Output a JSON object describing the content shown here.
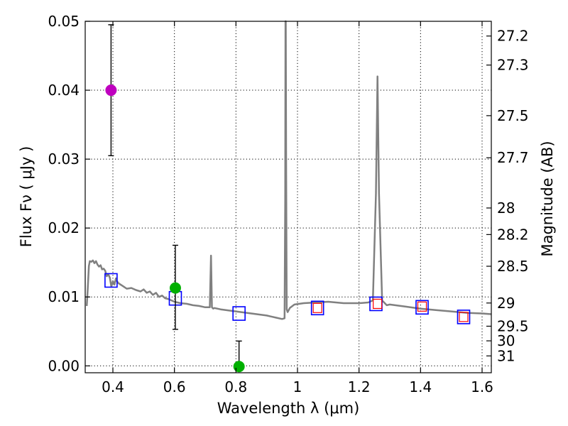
{
  "chart_data": {
    "type": "scatter",
    "title": "",
    "xlabel": "Wavelength  λ (μm)",
    "ylabel": "Flux  Fν  ( μJy )",
    "y2label": "Magnitude (AB)",
    "xlim": [
      0.31,
      1.63
    ],
    "ylim": [
      -0.001,
      0.05
    ],
    "grid": true,
    "x_ticks": [
      0.4,
      0.6,
      0.8,
      1.0,
      1.2,
      1.4,
      1.6
    ],
    "x_tick_labels": [
      "0.4",
      "0.6",
      "0.8",
      "1",
      "1.2",
      "1.4",
      "1.6"
    ],
    "y_ticks": [
      0.0,
      0.01,
      0.02,
      0.03,
      0.04,
      0.05
    ],
    "y_tick_labels": [
      "0.00",
      "0.01",
      "0.02",
      "0.03",
      "0.04",
      "0.05"
    ],
    "mag_ticks": [
      "27.2",
      "27.3",
      "27.5",
      "27.7",
      "28",
      "28.2",
      "28.5",
      "29",
      "29.5",
      "30",
      "31"
    ],
    "colors": {
      "model": "#808080",
      "blue_box": "#0000ff",
      "red_box": "#ff0000",
      "magenta": "#bf00bf",
      "green": "#00b000"
    },
    "series": [
      {
        "name": "model SED",
        "style": "line",
        "x": [
          0.315,
          0.318,
          0.322,
          0.325,
          0.33,
          0.335,
          0.34,
          0.345,
          0.35,
          0.355,
          0.36,
          0.365,
          0.37,
          0.375,
          0.38,
          0.385,
          0.39,
          0.395,
          0.4,
          0.405,
          0.41,
          0.413,
          0.418,
          0.425,
          0.435,
          0.445,
          0.46,
          0.475,
          0.49,
          0.5,
          0.51,
          0.52,
          0.53,
          0.54,
          0.55,
          0.56,
          0.57,
          0.58,
          0.6,
          0.62,
          0.64,
          0.66,
          0.68,
          0.7,
          0.715,
          0.719,
          0.722,
          0.726,
          0.73,
          0.75,
          0.8,
          0.85,
          0.9,
          0.93,
          0.95,
          0.958,
          0.96,
          0.961,
          0.962,
          0.963,
          0.965,
          0.968,
          0.975,
          0.99,
          1.02,
          1.06,
          1.1,
          1.15,
          1.2,
          1.23,
          1.245,
          1.255,
          1.26,
          1.265,
          1.275,
          1.29,
          1.3,
          1.35,
          1.4,
          1.45,
          1.5,
          1.55,
          1.6,
          1.63
        ],
        "y": [
          0.0087,
          0.011,
          0.0145,
          0.0152,
          0.0151,
          0.0153,
          0.0149,
          0.0152,
          0.0147,
          0.0144,
          0.0146,
          0.014,
          0.0141,
          0.0138,
          0.013,
          0.0133,
          0.0128,
          0.0115,
          0.0123,
          0.0118,
          0.0127,
          0.0123,
          0.012,
          0.0118,
          0.0115,
          0.0112,
          0.0113,
          0.011,
          0.0108,
          0.0111,
          0.0106,
          0.0108,
          0.0103,
          0.0106,
          0.01,
          0.0102,
          0.0098,
          0.0097,
          0.0093,
          0.0091,
          0.009,
          0.0088,
          0.0087,
          0.0085,
          0.0085,
          0.016,
          0.0085,
          0.0083,
          0.0084,
          0.0082,
          0.0079,
          0.0076,
          0.0073,
          0.007,
          0.0068,
          0.0069,
          0.024,
          0.05,
          0.05,
          0.03,
          0.0082,
          0.0078,
          0.0084,
          0.0089,
          0.0091,
          0.0092,
          0.0093,
          0.0091,
          0.0091,
          0.0092,
          0.0095,
          0.025,
          0.042,
          0.025,
          0.0095,
          0.0088,
          0.0089,
          0.0086,
          0.0083,
          0.0081,
          0.0079,
          0.0077,
          0.0076,
          0.0075
        ]
      },
      {
        "name": "model band fluxes",
        "style": "open-square",
        "color": "#0000ff",
        "x": [
          0.394,
          0.603,
          0.81,
          1.065,
          1.255,
          1.405,
          1.54
        ],
        "y": [
          0.0124,
          0.0098,
          0.0076,
          0.0084,
          0.009,
          0.0085,
          0.0071
        ]
      },
      {
        "name": "observed NIR",
        "style": "open-square-small",
        "color": "#ff0000",
        "x": [
          1.065,
          1.26,
          1.405,
          1.54
        ],
        "y": [
          0.0084,
          0.009,
          0.0086,
          0.0071
        ]
      },
      {
        "name": "observed U",
        "style": "errorbar-circle",
        "color": "#bf00bf",
        "x": [
          0.394
        ],
        "y": [
          0.04
        ],
        "yerr_low": [
          0.0305
        ],
        "yerr_high": [
          0.0495
        ]
      },
      {
        "name": "observed V",
        "style": "errorbar-circle",
        "color": "#00b000",
        "x": [
          0.603
        ],
        "y": [
          0.0113
        ],
        "yerr_low": [
          0.0053
        ],
        "yerr_high": [
          0.0175
        ]
      },
      {
        "name": "observed i",
        "style": "errorbar-circle",
        "color": "#00b000",
        "x": [
          0.81
        ],
        "y": [
          -0.0001
        ],
        "yerr_low": [
          -0.0001
        ],
        "yerr_high": [
          0.0036
        ]
      }
    ]
  }
}
